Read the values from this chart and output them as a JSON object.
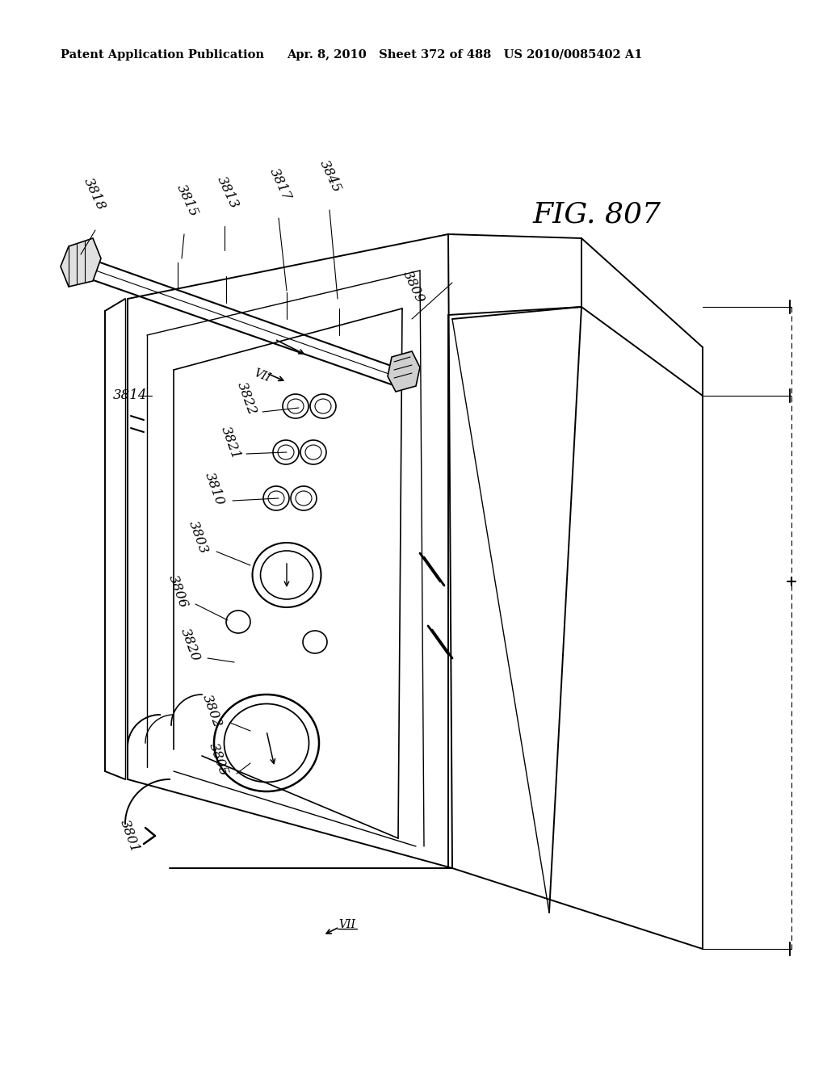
{
  "header_left": "Patent Application Publication",
  "header_mid": "Apr. 8, 2010   Sheet 372 of 488   US 2010/0085402 A1",
  "fig_label": "FIG. 807",
  "background": "#ffffff"
}
